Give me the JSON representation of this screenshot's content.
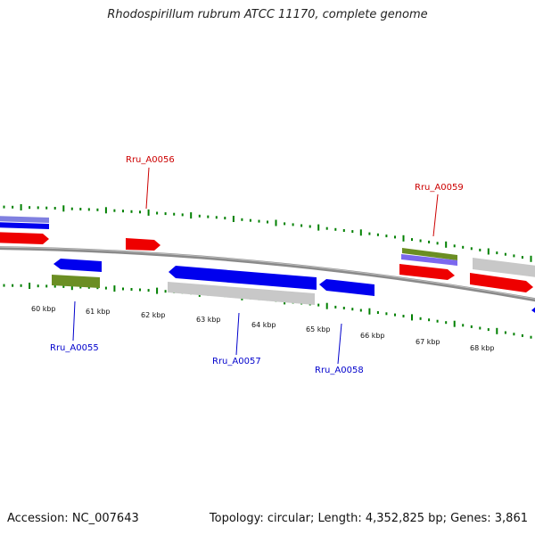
{
  "title": "Rhodospirillum rubrum ATCC 11170, complete genome",
  "footer": {
    "accession": "Accession: NC_007643",
    "summary": "Topology: circular; Length: 4,352,825 bp; Genes: 3,861"
  },
  "colors": {
    "forward_cds": "#ff0000",
    "reverse_cds": "#0000ff",
    "gray_feature": "#c0c0c0",
    "green_feature": "#6b8e23",
    "purple_feature": "#7b68ee",
    "tick": "#008000",
    "backbone": "#808080"
  },
  "scale": {
    "ticks": [
      {
        "label": "60 kbp"
      },
      {
        "label": "61 kbp"
      },
      {
        "label": "62 kbp"
      },
      {
        "label": "63 kbp"
      },
      {
        "label": "64 kbp"
      },
      {
        "label": "65 kbp"
      },
      {
        "label": "66 kbp"
      },
      {
        "label": "67 kbp"
      },
      {
        "label": "68 kbp"
      }
    ]
  },
  "gene_labels": [
    {
      "text": "Rru_A0056",
      "strand": "forward"
    },
    {
      "text": "Rru_A0059",
      "strand": "forward"
    },
    {
      "text": "Rru_A0055",
      "strand": "reverse"
    },
    {
      "text": "Rru_A0057",
      "strand": "reverse"
    },
    {
      "text": "Rru_A0058",
      "strand": "reverse"
    }
  ]
}
